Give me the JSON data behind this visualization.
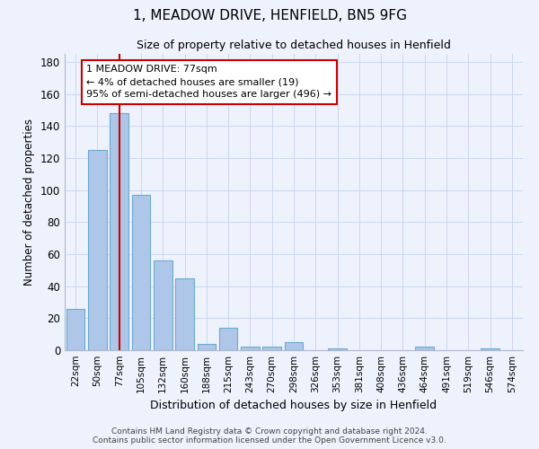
{
  "title_line1": "1, MEADOW DRIVE, HENFIELD, BN5 9FG",
  "title_line2": "Size of property relative to detached houses in Henfield",
  "xlabel": "Distribution of detached houses by size in Henfield",
  "ylabel": "Number of detached properties",
  "categories": [
    "22sqm",
    "50sqm",
    "77sqm",
    "105sqm",
    "132sqm",
    "160sqm",
    "188sqm",
    "215sqm",
    "243sqm",
    "270sqm",
    "298sqm",
    "326sqm",
    "353sqm",
    "381sqm",
    "408sqm",
    "436sqm",
    "464sqm",
    "491sqm",
    "519sqm",
    "546sqm",
    "574sqm"
  ],
  "values": [
    26,
    125,
    148,
    97,
    56,
    45,
    4,
    14,
    2,
    2,
    5,
    0,
    1,
    0,
    0,
    0,
    2,
    0,
    0,
    1,
    0
  ],
  "bar_color": "#aec6e8",
  "bar_edge_color": "#6aaad4",
  "vline_x": 2,
  "vline_color": "#cc0000",
  "annotation_text": "1 MEADOW DRIVE: 77sqm\n← 4% of detached houses are smaller (19)\n95% of semi-detached houses are larger (496) →",
  "annotation_box_color": "#ffffff",
  "annotation_box_edge_color": "#cc0000",
  "ylim": [
    0,
    185
  ],
  "yticks": [
    0,
    20,
    40,
    60,
    80,
    100,
    120,
    140,
    160,
    180
  ],
  "footer_line1": "Contains HM Land Registry data © Crown copyright and database right 2024.",
  "footer_line2": "Contains public sector information licensed under the Open Government Licence v3.0.",
  "background_color": "#eef2fc",
  "plot_background": "#eef2fc",
  "grid_color": "#c5d3ed"
}
